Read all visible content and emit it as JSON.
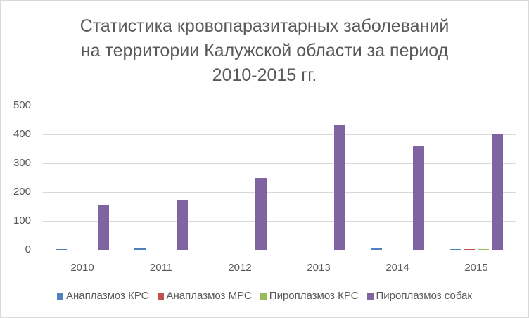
{
  "chart_data": {
    "type": "bar",
    "title": "Статистика кровопаразитарных заболеваний на территории Калужской области за период 2010-2015 гг.",
    "title_lines": [
      "Статистика кровопаразитарных заболеваний",
      "на территории Калужской области за период",
      "2010-2015 гг."
    ],
    "xlabel": "",
    "ylabel": "",
    "categories": [
      "2010",
      "2011",
      "2012",
      "2013",
      "2014",
      "2015"
    ],
    "series": [
      {
        "name": "Анаплазмоз КРС",
        "color": "#4f81bd",
        "values": [
          2,
          5,
          0,
          0,
          5,
          2
        ]
      },
      {
        "name": "Анаплазмоз МРС",
        "color": "#c0504d",
        "values": [
          0,
          0,
          0,
          0,
          0,
          2
        ]
      },
      {
        "name": "Пироплазмоз КРС",
        "color": "#9bbb59",
        "values": [
          0,
          0,
          0,
          0,
          0,
          2
        ]
      },
      {
        "name": "Пироплазмоз собак",
        "color": "#8064a2",
        "values": [
          156,
          173,
          249,
          432,
          361,
          401
        ]
      }
    ],
    "ylim": [
      0,
      500
    ],
    "yticks": [
      "0",
      "100",
      "200",
      "300",
      "400",
      "500"
    ],
    "grid": true,
    "legend_position": "bottom"
  }
}
